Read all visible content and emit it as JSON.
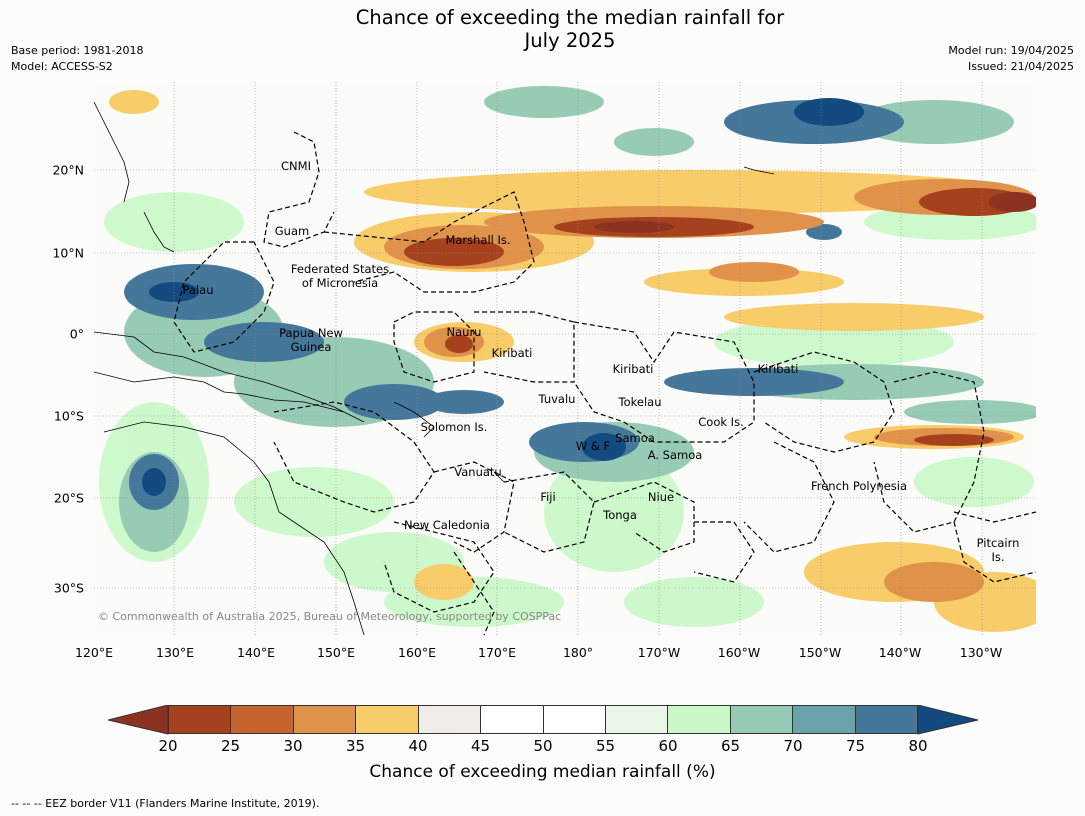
{
  "title": {
    "line1": "Chance of exceeding the median rainfall for",
    "line2": "July 2025"
  },
  "meta_left": {
    "base_period": "Base period: 1981-2018",
    "model": "Model: ACCESS-S2"
  },
  "meta_right": {
    "model_run": "Model run: 19/04/2025",
    "issued": "Issued: 21/04/2025"
  },
  "map": {
    "copyright": "© Commonwealth of Australia 2025, Bureau of Meteorology, supported by COSPPac",
    "lon_ticks": [
      "120°E",
      "130°E",
      "140°E",
      "150°E",
      "160°E",
      "170°E",
      "180°",
      "170°W",
      "160°W",
      "150°W",
      "140°W",
      "130°W"
    ],
    "lat_ticks": [
      "20°N",
      "10°N",
      "0°",
      "10°S",
      "20°S",
      "30°S"
    ],
    "region_labels": [
      {
        "text": "CNMI"
      },
      {
        "text": "Guam"
      },
      {
        "text": "Marshall Is."
      },
      {
        "text": "Federated States\nof Micronesia"
      },
      {
        "text": "Palau"
      },
      {
        "text": "Nauru"
      },
      {
        "text": "Papua New\nGuinea"
      },
      {
        "text": "Kiribati"
      },
      {
        "text": "Kiribati"
      },
      {
        "text": "Kiribati"
      },
      {
        "text": "Tuvalu"
      },
      {
        "text": "Tokelau"
      },
      {
        "text": "Cook Is."
      },
      {
        "text": "Solomon Is."
      },
      {
        "text": "W & F"
      },
      {
        "text": "Samoa"
      },
      {
        "text": "A. Samoa"
      },
      {
        "text": "Vanuatu"
      },
      {
        "text": "Fiji"
      },
      {
        "text": "Niue"
      },
      {
        "text": "Tonga"
      },
      {
        "text": "French Polynesia"
      },
      {
        "text": "New Caledonia"
      },
      {
        "text": "Pitcairn\nIs."
      }
    ]
  },
  "colorbar": {
    "title": "Chance of exceeding median rainfall (%)",
    "ticks": [
      "20",
      "25",
      "30",
      "35",
      "40",
      "45",
      "50",
      "55",
      "60",
      "65",
      "70",
      "75",
      "80"
    ],
    "colors": [
      "#a6411e",
      "#c6632f",
      "#e0914a",
      "#f9cc6a",
      "#efede8",
      "#ffffff",
      "#ffffff",
      "#eaf6e8",
      "#c9f8c8",
      "#98cbb4",
      "#6aa3aa",
      "#44779a"
    ],
    "under_color": "#8c3220",
    "over_color": "#134a80"
  },
  "footnote": "--  --  -- EEZ border V11 (Flanders Marine Institute, 2019)."
}
